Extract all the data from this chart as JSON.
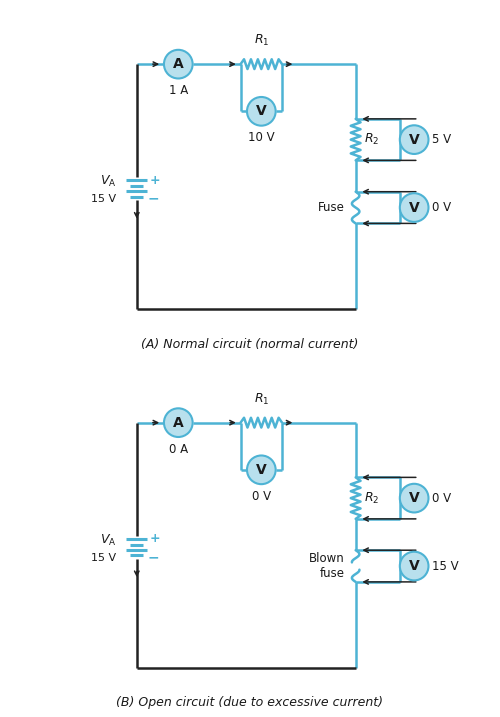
{
  "bg_color": "#ffffff",
  "line_color": "#4db3d4",
  "black": "#1a1a1a",
  "wire_black": "#222222",
  "circle_fill": "#b8e0ed",
  "circuit_A": {
    "ammeter_label": "1 A",
    "voltmeter1_label": "10 V",
    "voltmeter2_label": "5 V",
    "voltmeter3_label": "0 V",
    "fuse_label": "Fuse",
    "caption": "(A) Normal circuit (normal current)"
  },
  "circuit_B": {
    "ammeter_label": "0 A",
    "voltmeter1_label": "0 V",
    "voltmeter2_label": "0 V",
    "voltmeter3_label": "15 V",
    "fuse_label": "Blown\nfuse",
    "caption": "(B) Open circuit (due to excessive current)"
  }
}
